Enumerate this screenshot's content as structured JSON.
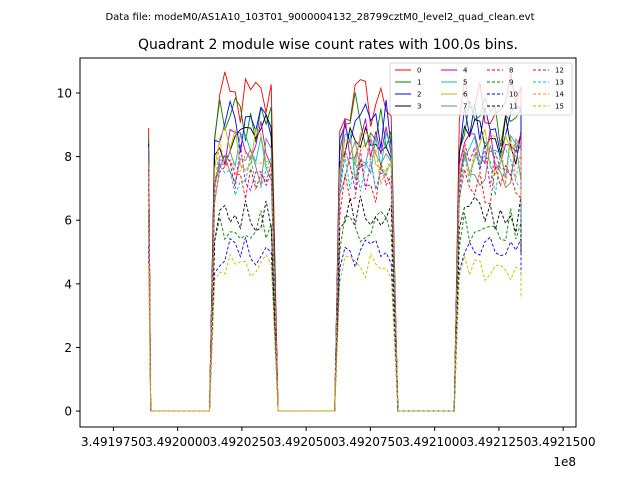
{
  "figure": {
    "suptitle": "Data file: modeM0/AS1A10_103T01_9000004132_28799cztM0_level2_quad_clean.evt",
    "title": "Quadrant 2 module wise count rates with 100.0s bins."
  },
  "chart_data": {
    "type": "line",
    "title": "Quadrant 2 module wise count rates with 100.0s bins.",
    "xlabel": "",
    "ylabel": "",
    "x_offset_label": "1e8",
    "xlim": [
      3.491962,
      3.492155
    ],
    "ylim": [
      -0.5,
      11.1
    ],
    "xticks": [
      3.491975,
      3.492,
      3.492025,
      3.49205,
      3.492075,
      3.4921,
      3.492125,
      3.49215
    ],
    "xtick_labels": [
      "3.4919750",
      "3.4920000",
      "3.4920250",
      "3.4920500",
      "3.4920750",
      "3.4921000",
      "3.4921250",
      "3.4921500"
    ],
    "yticks": [
      0,
      2,
      4,
      6,
      8,
      10
    ],
    "ytick_labels": [
      "0",
      "2",
      "4",
      "6",
      "8",
      "10"
    ],
    "grid": false,
    "legend_position": "top-right",
    "legend_columns": 4,
    "active_segments": [
      [
        3.4919887,
        3.4919895
      ],
      [
        3.4920144,
        3.4920381
      ],
      [
        3.4920631,
        3.4920847
      ],
      [
        3.4921096,
        3.4921336
      ]
    ],
    "gap_segments": [
      [
        3.4919896,
        3.4920143
      ],
      [
        3.4920382,
        3.492063
      ],
      [
        3.4920848,
        3.4921095
      ]
    ],
    "series": [
      {
        "name": "0",
        "color": "#ff0000",
        "dash": "solid",
        "level": 9.7,
        "start": 8.9
      },
      {
        "name": "1",
        "color": "#008000",
        "dash": "solid",
        "level": 9.2,
        "start": 8.6
      },
      {
        "name": "2",
        "color": "#0000ff",
        "dash": "solid",
        "level": 9.0,
        "start": 8.4
      },
      {
        "name": "3",
        "color": "#000000",
        "dash": "solid",
        "level": 8.6,
        "start": 8.2
      },
      {
        "name": "4",
        "color": "#bf00bf",
        "dash": "solid",
        "level": 8.4,
        "start": 8.1
      },
      {
        "name": "5",
        "color": "#00bfbf",
        "dash": "solid",
        "level": 8.0,
        "start": 7.9
      },
      {
        "name": "6",
        "color": "#bfbf00",
        "dash": "solid",
        "level": 8.2,
        "start": 7.8
      },
      {
        "name": "7",
        "color": "#808080",
        "dash": "solid",
        "level": 7.8,
        "start": 8.3
      },
      {
        "name": "8",
        "color": "#ff0000",
        "dash": "dashed",
        "level": 7.2,
        "start": 7.0
      },
      {
        "name": "9",
        "color": "#008000",
        "dash": "dashed",
        "level": 5.9,
        "start": 6.0
      },
      {
        "name": "10",
        "color": "#0000ff",
        "dash": "dashed",
        "level": 5.0,
        "start": 5.2
      },
      {
        "name": "11",
        "color": "#000000",
        "dash": "dashed",
        "level": 6.2,
        "start": 6.3
      },
      {
        "name": "12",
        "color": "#bf00bf",
        "dash": "dashed",
        "level": 7.7,
        "start": 7.6
      },
      {
        "name": "13",
        "color": "#00bfbf",
        "dash": "dashed",
        "level": 7.5,
        "start": 7.4
      },
      {
        "name": "14",
        "color": "#ff8c1a",
        "dash": "dashed",
        "level": 7.9,
        "start": 7.7
      },
      {
        "name": "15",
        "color": "#bfbf00",
        "dash": "dashed",
        "level": 4.5,
        "start": 4.6
      }
    ]
  }
}
